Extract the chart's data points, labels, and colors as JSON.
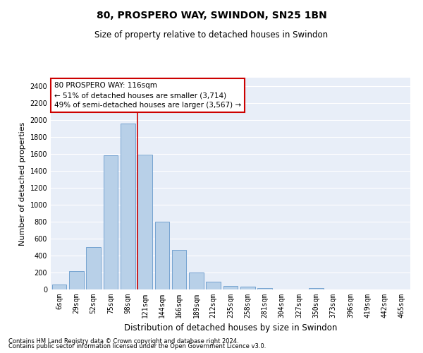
{
  "title1": "80, PROSPERO WAY, SWINDON, SN25 1BN",
  "title2": "Size of property relative to detached houses in Swindon",
  "xlabel": "Distribution of detached houses by size in Swindon",
  "ylabel": "Number of detached properties",
  "footer1": "Contains HM Land Registry data © Crown copyright and database right 2024.",
  "footer2": "Contains public sector information licensed under the Open Government Licence v3.0.",
  "categories": [
    "6sqm",
    "29sqm",
    "52sqm",
    "75sqm",
    "98sqm",
    "121sqm",
    "144sqm",
    "166sqm",
    "189sqm",
    "212sqm",
    "235sqm",
    "258sqm",
    "281sqm",
    "304sqm",
    "327sqm",
    "350sqm",
    "373sqm",
    "396sqm",
    "419sqm",
    "442sqm",
    "465sqm"
  ],
  "values": [
    60,
    220,
    500,
    1580,
    1960,
    1590,
    800,
    470,
    200,
    95,
    40,
    30,
    20,
    0,
    0,
    20,
    0,
    0,
    0,
    0,
    0
  ],
  "bar_color": "#b8d0e8",
  "bar_edge_color": "#6699cc",
  "vline_color": "#cc0000",
  "annotation_text": "80 PROSPERO WAY: 116sqm\n← 51% of detached houses are smaller (3,714)\n49% of semi-detached houses are larger (3,567) →",
  "annotation_box_color": "white",
  "annotation_box_edge": "#cc0000",
  "ylim": [
    0,
    2500
  ],
  "yticks": [
    0,
    200,
    400,
    600,
    800,
    1000,
    1200,
    1400,
    1600,
    1800,
    2000,
    2200,
    2400
  ],
  "bg_color": "#e8eef8",
  "grid_color": "white",
  "title1_fontsize": 10,
  "title2_fontsize": 8.5,
  "tick_fontsize": 7,
  "ylabel_fontsize": 8,
  "xlabel_fontsize": 8.5,
  "footer_fontsize": 6,
  "annot_fontsize": 7.5
}
